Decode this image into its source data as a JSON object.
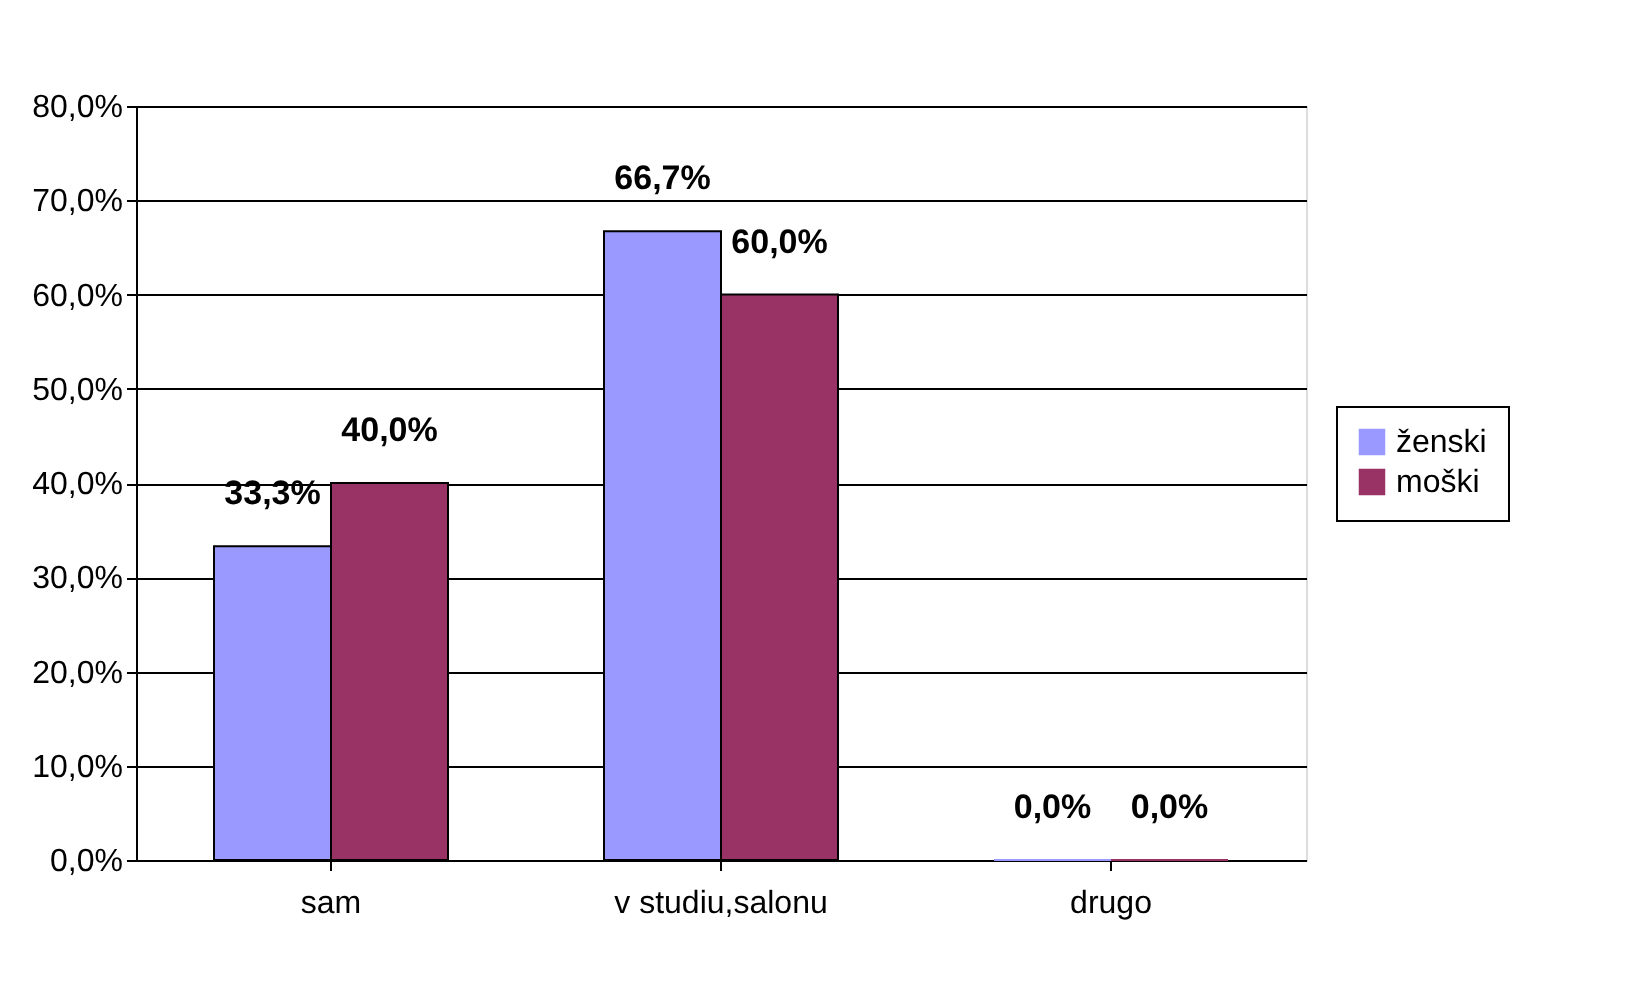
{
  "chart_data": {
    "type": "bar",
    "categories": [
      "sam",
      "v studiu,salonu",
      "drugo"
    ],
    "series": [
      {
        "name": "ženski",
        "color": "#9999ff",
        "values": [
          33.3,
          66.7,
          0.0
        ],
        "value_labels": [
          "33,3%",
          "66,7%",
          "0,0%"
        ]
      },
      {
        "name": "moški",
        "color": "#993366",
        "values": [
          40.0,
          60.0,
          0.0
        ],
        "value_labels": [
          "40,0%",
          "60,0%",
          "0,0%"
        ]
      }
    ],
    "ylim": [
      0,
      80
    ],
    "yticks": [
      {
        "value": 0,
        "label": "0,0%"
      },
      {
        "value": 10,
        "label": "10,0%"
      },
      {
        "value": 20,
        "label": "20,0%"
      },
      {
        "value": 30,
        "label": "30,0%"
      },
      {
        "value": 40,
        "label": "40,0%"
      },
      {
        "value": 50,
        "label": "50,0%"
      },
      {
        "value": 60,
        "label": "60,0%"
      },
      {
        "value": 70,
        "label": "70,0%"
      },
      {
        "value": 80,
        "label": "80,0%"
      }
    ],
    "grid": "y",
    "legend": "right"
  }
}
